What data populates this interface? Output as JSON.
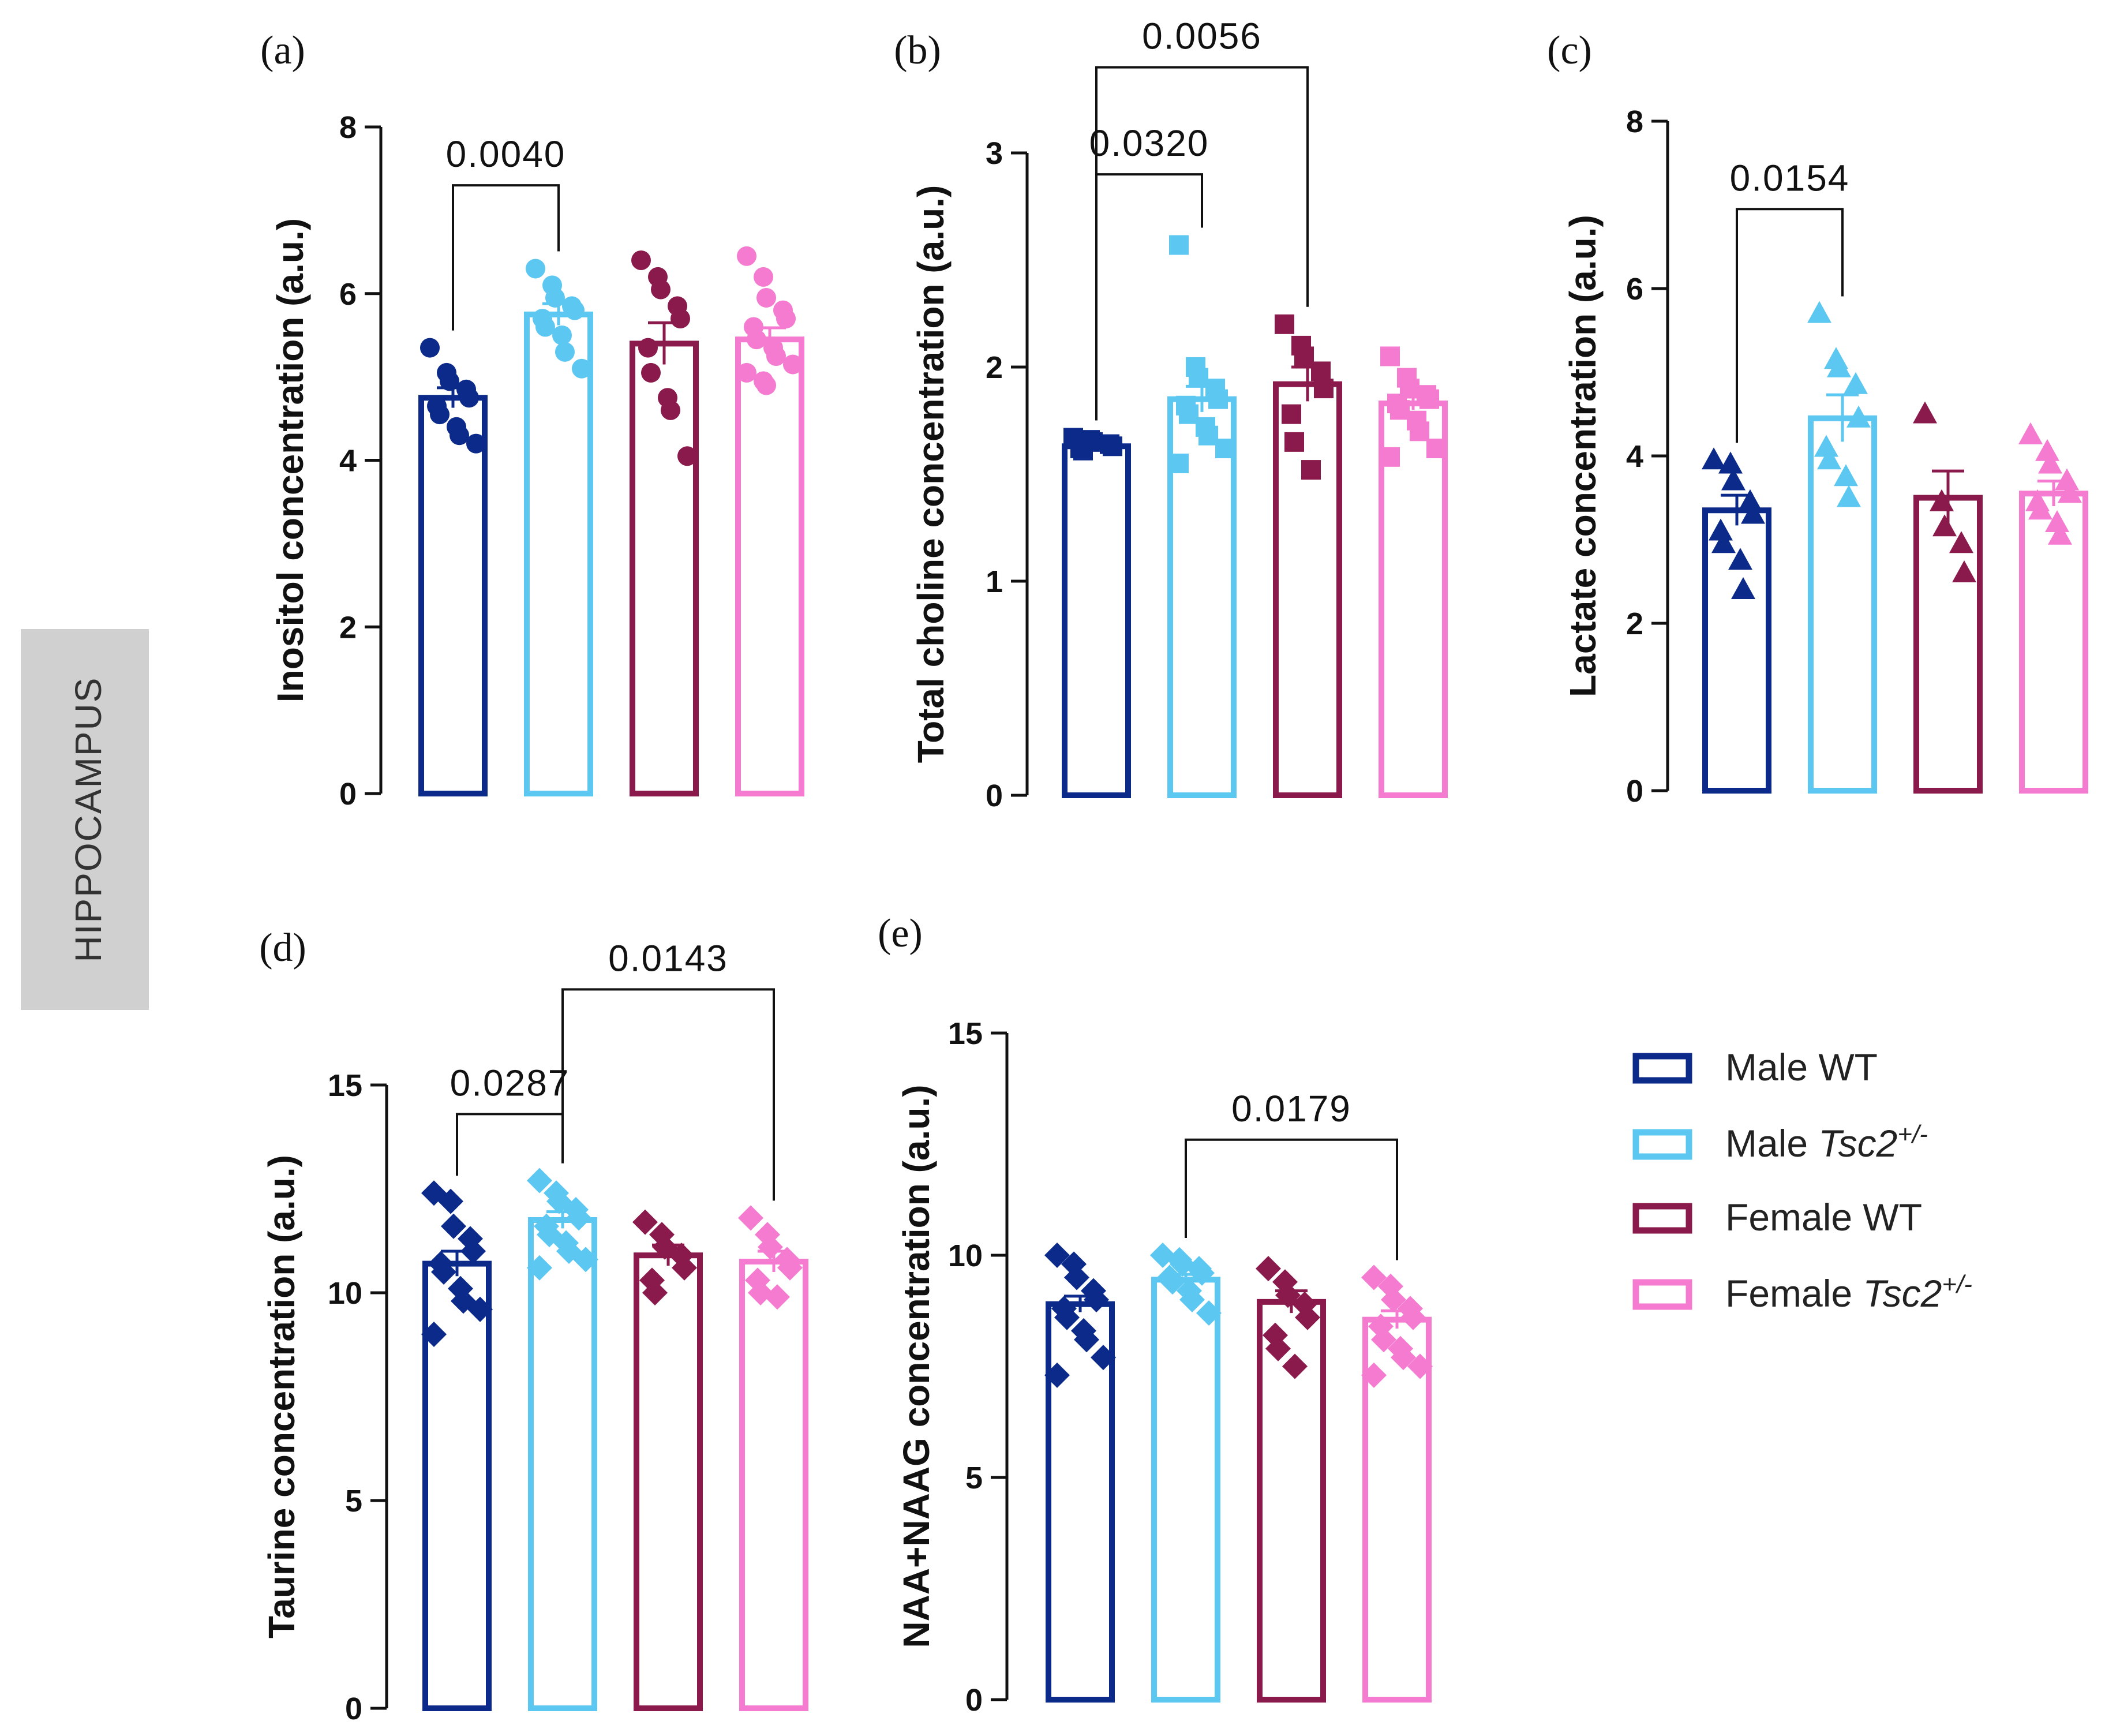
{
  "side_label": "HIPPOCAMPUS",
  "groups": [
    {
      "name": "Male WT",
      "base": "Male ",
      "gene": "",
      "sup": "",
      "color": "#0b2a8a"
    },
    {
      "name": "Male Tsc2+/-",
      "base": "Male ",
      "gene": "Tsc2",
      "sup": "+/-",
      "color": "#5cc8f2"
    },
    {
      "name": "Female WT",
      "base": "Female WT",
      "gene": "",
      "sup": "",
      "color": "#8b1a4c"
    },
    {
      "name": "Female Tsc2+/-",
      "base": "Female ",
      "gene": "Tsc2",
      "sup": "+/-",
      "color": "#f47bd0"
    }
  ],
  "chart_data": [
    {
      "panel": "(a)",
      "type": "bar",
      "ylabel": "Inositol concentration (a.u.)",
      "ylim": [
        0,
        8
      ],
      "yticks": [
        0,
        2,
        4,
        6,
        8
      ],
      "marker": "circle",
      "categories": [
        "Male WT",
        "Male Tsc2+/-",
        "Female WT",
        "Female Tsc2+/-"
      ],
      "means": [
        4.75,
        5.75,
        5.4,
        5.45
      ],
      "sem": [
        0.12,
        0.13,
        0.25,
        0.14
      ],
      "points": [
        [
          5.35,
          5.05,
          4.95,
          4.85,
          4.75,
          4.65,
          4.55,
          4.4,
          4.3,
          4.2
        ],
        [
          6.3,
          6.1,
          5.95,
          5.85,
          5.8,
          5.7,
          5.6,
          5.5,
          5.3,
          5.1
        ],
        [
          6.4,
          6.2,
          6.05,
          5.85,
          5.7,
          5.35,
          5.05,
          4.75,
          4.6,
          4.05
        ],
        [
          6.45,
          6.2,
          5.95,
          5.8,
          5.7,
          5.6,
          5.45,
          5.35,
          5.25,
          5.15,
          5.05,
          4.95,
          4.9
        ]
      ],
      "sig": [
        {
          "from": 0,
          "to": 1,
          "label": "0.0040",
          "level": 7.3
        }
      ]
    },
    {
      "panel": "(b)",
      "type": "bar",
      "ylabel": "Total choline concentration (a.u.)",
      "ylim": [
        0,
        3
      ],
      "yticks": [
        0,
        1,
        2,
        3
      ],
      "marker": "square",
      "categories": [
        "Male WT",
        "Male Tsc2+/-",
        "Female WT",
        "Female Tsc2+/-"
      ],
      "means": [
        1.63,
        1.85,
        1.92,
        1.83
      ],
      "sem": [
        0.01,
        0.06,
        0.08,
        0.03
      ],
      "points": [
        [
          1.67,
          1.66,
          1.65,
          1.64,
          1.63,
          1.62,
          1.61
        ],
        [
          2.57,
          2.0,
          1.95,
          1.9,
          1.85,
          1.82,
          1.78,
          1.72,
          1.68,
          1.62,
          1.55
        ],
        [
          2.2,
          2.1,
          2.05,
          1.98,
          1.9,
          1.78,
          1.65,
          1.52
        ],
        [
          2.05,
          1.95,
          1.9,
          1.87,
          1.85,
          1.83,
          1.8,
          1.75,
          1.7,
          1.62,
          1.58
        ]
      ],
      "sig": [
        {
          "from": 0,
          "to": 1,
          "label": "0.0320",
          "level": 2.9
        },
        {
          "from": 0,
          "to": 2,
          "label": "0.0056",
          "level": 3.4
        }
      ]
    },
    {
      "panel": "(c)",
      "type": "bar",
      "ylabel": "Lactate concentration (a.u.)",
      "ylim": [
        0,
        8
      ],
      "yticks": [
        0,
        2,
        4,
        6,
        8
      ],
      "marker": "triangle",
      "categories": [
        "Male WT",
        "Male Tsc2+/-",
        "Female WT",
        "Female Tsc2+/-"
      ],
      "means": [
        3.35,
        4.45,
        3.5,
        3.55
      ],
      "sem": [
        0.18,
        0.28,
        0.32,
        0.15
      ],
      "points": [
        [
          3.95,
          3.9,
          3.7,
          3.45,
          3.3,
          3.1,
          2.95,
          2.75,
          2.4
        ],
        [
          5.7,
          5.15,
          5.05,
          4.85,
          4.45,
          4.1,
          3.95,
          3.75,
          3.5
        ],
        [
          4.5,
          3.45,
          3.15,
          2.95,
          2.6
        ],
        [
          4.25,
          4.05,
          3.9,
          3.7,
          3.55,
          3.45,
          3.35,
          3.2,
          3.05
        ]
      ],
      "sig": [
        {
          "from": 0,
          "to": 1,
          "label": "0.0154",
          "level": 6.95
        }
      ]
    },
    {
      "panel": "(d)",
      "type": "bar",
      "ylabel": "Taurine concentration (a.u.)",
      "ylim": [
        0,
        15
      ],
      "yticks": [
        0,
        5,
        10,
        15
      ],
      "marker": "diamond",
      "categories": [
        "Male WT",
        "Male Tsc2+/-",
        "Female WT",
        "Female Tsc2+/-"
      ],
      "means": [
        10.7,
        11.75,
        10.9,
        10.75
      ],
      "sem": [
        0.3,
        0.2,
        0.25,
        0.25
      ],
      "points": [
        [
          12.4,
          12.2,
          11.6,
          11.3,
          11.0,
          10.7,
          10.5,
          10.1,
          9.8,
          9.6,
          9.0
        ],
        [
          12.7,
          12.4,
          12.2,
          12.0,
          11.8,
          11.6,
          11.4,
          11.2,
          11.0,
          10.8,
          10.6
        ],
        [
          11.7,
          11.4,
          11.1,
          10.9,
          10.6,
          10.3,
          10.0
        ],
        [
          11.8,
          11.4,
          11.1,
          10.8,
          10.6,
          10.3,
          10.0,
          9.9
        ]
      ],
      "sig": [
        {
          "from": 0,
          "to": 1,
          "label": "0.0287",
          "level": 14.3
        },
        {
          "from": 1,
          "to": 3,
          "label": "0.0143",
          "level": 17.3
        }
      ]
    },
    {
      "panel": "(e)",
      "type": "bar",
      "ylabel": "NAA+NAAG concentration (a.u.)",
      "ylim": [
        0,
        15
      ],
      "yticks": [
        0,
        5,
        10,
        15
      ],
      "marker": "diamond",
      "categories": [
        "Male WT",
        "Male Tsc2+/-",
        "Female WT",
        "Female Tsc2+/-"
      ],
      "means": [
        8.9,
        9.45,
        8.95,
        8.55
      ],
      "sem": [
        0.18,
        0.12,
        0.25,
        0.2
      ],
      "points": [
        [
          10.0,
          9.8,
          9.5,
          9.2,
          9.0,
          8.8,
          8.6,
          8.3,
          8.1,
          7.7,
          7.3
        ],
        [
          10.0,
          9.9,
          9.8,
          9.7,
          9.6,
          9.5,
          9.4,
          9.2,
          9.0,
          8.7
        ],
        [
          9.7,
          9.4,
          9.1,
          8.9,
          8.6,
          8.2,
          7.9,
          7.5
        ],
        [
          9.5,
          9.3,
          9.0,
          8.8,
          8.6,
          8.4,
          8.1,
          7.9,
          7.7,
          7.5,
          7.3
        ]
      ],
      "sig": [
        {
          "from": 1,
          "to": 3,
          "label": "0.0179",
          "level": 12.6
        }
      ]
    }
  ]
}
